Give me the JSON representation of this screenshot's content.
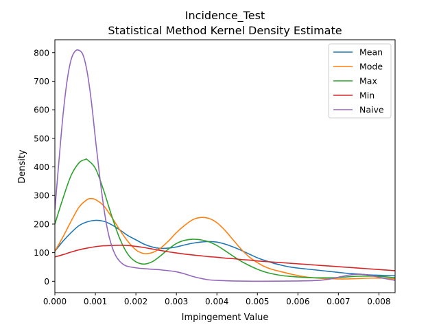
{
  "chart_data": {
    "type": "line",
    "title_line1": "Incidence_Test",
    "title_line2": "Statistical Method Kernel Density Estimate",
    "xlabel": "Impingement Value",
    "ylabel": "Density",
    "xlim": [
      0,
      0.0084
    ],
    "ylim": [
      -40,
      845
    ],
    "xticks": [
      0,
      0.001,
      0.002,
      0.003,
      0.004,
      0.005,
      0.006,
      0.007,
      0.008
    ],
    "xtick_labels": [
      "0.000",
      "0.001",
      "0.002",
      "0.003",
      "0.004",
      "0.005",
      "0.006",
      "0.007",
      "0.008"
    ],
    "yticks": [
      0,
      100,
      200,
      300,
      400,
      500,
      600,
      700,
      800
    ],
    "ytick_labels": [
      "0",
      "100",
      "200",
      "300",
      "400",
      "500",
      "600",
      "700",
      "800"
    ],
    "grid": false,
    "legend_position": "top-right",
    "series": [
      {
        "name": "Mean",
        "color": "#1f77b4",
        "points": [
          [
            0,
            105
          ],
          [
            0.0002,
            140
          ],
          [
            0.0004,
            170
          ],
          [
            0.0006,
            195
          ],
          [
            0.0008,
            208
          ],
          [
            0.001,
            213
          ],
          [
            0.0012,
            210
          ],
          [
            0.0014,
            198
          ],
          [
            0.0016,
            180
          ],
          [
            0.0018,
            160
          ],
          [
            0.002,
            145
          ],
          [
            0.0022,
            130
          ],
          [
            0.0024,
            120
          ],
          [
            0.0026,
            115
          ],
          [
            0.0028,
            116
          ],
          [
            0.003,
            120
          ],
          [
            0.0032,
            127
          ],
          [
            0.0034,
            133
          ],
          [
            0.0036,
            137
          ],
          [
            0.0038,
            139
          ],
          [
            0.004,
            137
          ],
          [
            0.0042,
            130
          ],
          [
            0.0044,
            120
          ],
          [
            0.0046,
            108
          ],
          [
            0.0048,
            95
          ],
          [
            0.005,
            82
          ],
          [
            0.0052,
            72
          ],
          [
            0.0054,
            63
          ],
          [
            0.0056,
            56
          ],
          [
            0.0058,
            50
          ],
          [
            0.006,
            46
          ],
          [
            0.0062,
            43
          ],
          [
            0.0064,
            40
          ],
          [
            0.0066,
            37
          ],
          [
            0.0068,
            34
          ],
          [
            0.007,
            31
          ],
          [
            0.0072,
            28
          ],
          [
            0.0074,
            26
          ],
          [
            0.0076,
            24
          ],
          [
            0.0078,
            22
          ],
          [
            0.008,
            21
          ],
          [
            0.0082,
            20
          ],
          [
            0.0084,
            19
          ]
        ]
      },
      {
        "name": "Mode",
        "color": "#ff7f0e",
        "points": [
          [
            0,
            105
          ],
          [
            0.0002,
            155
          ],
          [
            0.0004,
            210
          ],
          [
            0.0006,
            260
          ],
          [
            0.0008,
            286
          ],
          [
            0.0009,
            289
          ],
          [
            0.001,
            286
          ],
          [
            0.0012,
            265
          ],
          [
            0.0014,
            225
          ],
          [
            0.0016,
            180
          ],
          [
            0.0018,
            140
          ],
          [
            0.002,
            110
          ],
          [
            0.0022,
            97
          ],
          [
            0.0024,
            100
          ],
          [
            0.0026,
            115
          ],
          [
            0.0028,
            140
          ],
          [
            0.003,
            170
          ],
          [
            0.0032,
            195
          ],
          [
            0.0034,
            215
          ],
          [
            0.0036,
            223
          ],
          [
            0.0038,
            220
          ],
          [
            0.004,
            205
          ],
          [
            0.0042,
            178
          ],
          [
            0.0044,
            145
          ],
          [
            0.0046,
            112
          ],
          [
            0.0048,
            85
          ],
          [
            0.005,
            65
          ],
          [
            0.0052,
            50
          ],
          [
            0.0054,
            40
          ],
          [
            0.0056,
            33
          ],
          [
            0.0058,
            26
          ],
          [
            0.006,
            20
          ],
          [
            0.0062,
            15
          ],
          [
            0.0064,
            12
          ],
          [
            0.0066,
            10
          ],
          [
            0.0068,
            9
          ],
          [
            0.007,
            8
          ],
          [
            0.0072,
            8
          ],
          [
            0.0074,
            9
          ],
          [
            0.0076,
            10
          ],
          [
            0.0078,
            11
          ],
          [
            0.008,
            11
          ],
          [
            0.0082,
            10
          ],
          [
            0.0084,
            8
          ]
        ]
      },
      {
        "name": "Max",
        "color": "#2ca02c",
        "points": [
          [
            0,
            200
          ],
          [
            0.0002,
            290
          ],
          [
            0.0004,
            370
          ],
          [
            0.0006,
            415
          ],
          [
            0.00075,
            426
          ],
          [
            0.0008,
            425
          ],
          [
            0.001,
            395
          ],
          [
            0.0012,
            320
          ],
          [
            0.0014,
            230
          ],
          [
            0.0016,
            150
          ],
          [
            0.0018,
            95
          ],
          [
            0.002,
            68
          ],
          [
            0.0022,
            60
          ],
          [
            0.0024,
            68
          ],
          [
            0.0026,
            88
          ],
          [
            0.0028,
            112
          ],
          [
            0.003,
            132
          ],
          [
            0.0032,
            143
          ],
          [
            0.0034,
            147
          ],
          [
            0.0036,
            145
          ],
          [
            0.0038,
            138
          ],
          [
            0.004,
            125
          ],
          [
            0.0042,
            107
          ],
          [
            0.0044,
            88
          ],
          [
            0.0046,
            70
          ],
          [
            0.0048,
            55
          ],
          [
            0.005,
            42
          ],
          [
            0.0052,
            32
          ],
          [
            0.0054,
            25
          ],
          [
            0.0056,
            20
          ],
          [
            0.0058,
            17
          ],
          [
            0.006,
            15
          ],
          [
            0.0062,
            13
          ],
          [
            0.0064,
            12
          ],
          [
            0.0066,
            12
          ],
          [
            0.0068,
            12
          ],
          [
            0.007,
            13
          ],
          [
            0.0072,
            15
          ],
          [
            0.0074,
            17
          ],
          [
            0.0076,
            18
          ],
          [
            0.0078,
            18
          ],
          [
            0.008,
            17
          ],
          [
            0.0082,
            15
          ],
          [
            0.0084,
            12
          ]
        ]
      },
      {
        "name": "Min",
        "color": "#d62728",
        "points": [
          [
            0,
            85
          ],
          [
            0.0002,
            93
          ],
          [
            0.0004,
            102
          ],
          [
            0.0006,
            110
          ],
          [
            0.0008,
            116
          ],
          [
            0.001,
            121
          ],
          [
            0.0012,
            124
          ],
          [
            0.0014,
            125
          ],
          [
            0.0016,
            126
          ],
          [
            0.0018,
            125
          ],
          [
            0.002,
            122
          ],
          [
            0.0022,
            118
          ],
          [
            0.0024,
            113
          ],
          [
            0.0026,
            108
          ],
          [
            0.0028,
            103
          ],
          [
            0.003,
            99
          ],
          [
            0.0032,
            95
          ],
          [
            0.0034,
            92
          ],
          [
            0.0036,
            89
          ],
          [
            0.0038,
            86
          ],
          [
            0.004,
            84
          ],
          [
            0.0042,
            81
          ],
          [
            0.0044,
            79
          ],
          [
            0.0046,
            76
          ],
          [
            0.0048,
            74
          ],
          [
            0.005,
            71
          ],
          [
            0.0052,
            69
          ],
          [
            0.0054,
            67
          ],
          [
            0.0056,
            65
          ],
          [
            0.0058,
            63
          ],
          [
            0.006,
            61
          ],
          [
            0.0062,
            59
          ],
          [
            0.0064,
            57
          ],
          [
            0.0066,
            55
          ],
          [
            0.0068,
            53
          ],
          [
            0.007,
            51
          ],
          [
            0.0072,
            49
          ],
          [
            0.0074,
            47
          ],
          [
            0.0076,
            45
          ],
          [
            0.0078,
            43
          ],
          [
            0.008,
            41
          ],
          [
            0.0082,
            39
          ],
          [
            0.0084,
            37
          ]
        ]
      },
      {
        "name": "Naive",
        "color": "#9467bd",
        "points": [
          [
            0,
            250
          ],
          [
            0.0001,
            420
          ],
          [
            0.0002,
            580
          ],
          [
            0.0003,
            700
          ],
          [
            0.0004,
            775
          ],
          [
            0.0005,
            805
          ],
          [
            0.0006,
            808
          ],
          [
            0.0007,
            790
          ],
          [
            0.0008,
            730
          ],
          [
            0.0009,
            630
          ],
          [
            0.001,
            500
          ],
          [
            0.0011,
            375
          ],
          [
            0.0012,
            265
          ],
          [
            0.0013,
            180
          ],
          [
            0.0014,
            125
          ],
          [
            0.0015,
            90
          ],
          [
            0.0016,
            70
          ],
          [
            0.0017,
            58
          ],
          [
            0.0018,
            52
          ],
          [
            0.002,
            47
          ],
          [
            0.0022,
            44
          ],
          [
            0.0024,
            42
          ],
          [
            0.0026,
            40
          ],
          [
            0.0028,
            37
          ],
          [
            0.003,
            33
          ],
          [
            0.0032,
            26
          ],
          [
            0.0034,
            17
          ],
          [
            0.0036,
            10
          ],
          [
            0.0038,
            5
          ],
          [
            0.004,
            3
          ],
          [
            0.0044,
            1
          ],
          [
            0.005,
            0
          ],
          [
            0.006,
            1
          ],
          [
            0.0065,
            3
          ],
          [
            0.0068,
            8
          ],
          [
            0.007,
            14
          ],
          [
            0.0072,
            20
          ],
          [
            0.0074,
            24
          ],
          [
            0.0076,
            24
          ],
          [
            0.0078,
            20
          ],
          [
            0.008,
            14
          ],
          [
            0.0082,
            8
          ],
          [
            0.0084,
            3
          ]
        ]
      }
    ]
  }
}
